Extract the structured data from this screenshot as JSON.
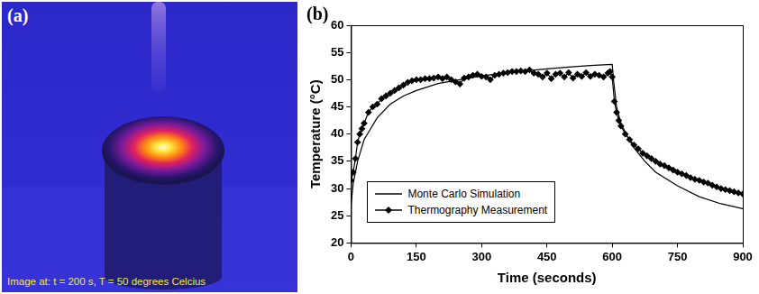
{
  "image_panel": {
    "label": "(a)",
    "caption": "Image at: t = 200 s, T = 50 degrees Celcius"
  },
  "chart_data": {
    "label": "(b)",
    "type": "line",
    "x_label": "Time (seconds)",
    "y_label": "Temperature (°C)",
    "xlim": [
      0,
      900
    ],
    "xticks": [
      0,
      150,
      300,
      450,
      600,
      750,
      900
    ],
    "ylim": [
      20,
      60
    ],
    "yticks": [
      20,
      25,
      30,
      35,
      40,
      45,
      50,
      55,
      60
    ],
    "grid": false,
    "legend": "lower left",
    "series": [
      {
        "name": "Monte Carlo Simulation",
        "color": "#000000",
        "line_style": "solid",
        "marker": "none",
        "x": [
          0,
          5,
          15,
          30,
          60,
          90,
          120,
          150,
          200,
          250,
          300,
          350,
          400,
          450,
          500,
          550,
          600,
          603,
          610,
          620,
          635,
          650,
          675,
          700,
          750,
          800,
          850,
          900
        ],
        "values": [
          27,
          31,
          35,
          39,
          43,
          45.5,
          47,
          48,
          49.3,
          50,
          50.7,
          51.2,
          51.6,
          52,
          52.3,
          52.6,
          52.8,
          50,
          45,
          42,
          39.5,
          37.5,
          35,
          33,
          30.5,
          28.5,
          27.2,
          26.3
        ]
      },
      {
        "name": "Thermography Measurement",
        "color": "#000000",
        "line_style": "solid",
        "marker": "diamond",
        "x": [
          0,
          5,
          10,
          15,
          20,
          25,
          30,
          40,
          50,
          60,
          70,
          80,
          90,
          100,
          110,
          120,
          130,
          140,
          150,
          160,
          170,
          180,
          190,
          200,
          210,
          220,
          230,
          240,
          250,
          260,
          270,
          280,
          290,
          300,
          310,
          320,
          330,
          340,
          350,
          360,
          370,
          380,
          390,
          400,
          410,
          420,
          430,
          440,
          450,
          460,
          470,
          480,
          490,
          500,
          510,
          520,
          530,
          540,
          550,
          560,
          570,
          580,
          590,
          595,
          600,
          605,
          610,
          615,
          620,
          630,
          640,
          650,
          660,
          670,
          680,
          690,
          700,
          710,
          720,
          730,
          740,
          750,
          760,
          770,
          780,
          790,
          800,
          810,
          820,
          830,
          840,
          850,
          860,
          870,
          880,
          890,
          900
        ],
        "values": [
          31.5,
          33,
          35.5,
          38.5,
          40,
          41,
          42,
          44,
          45,
          45.5,
          46.5,
          47,
          47.5,
          48,
          48.5,
          49,
          49.5,
          49.8,
          50,
          50,
          50.2,
          50.2,
          50.3,
          50.5,
          50.2,
          50.5,
          50,
          49.6,
          49.2,
          50.3,
          50.5,
          50.8,
          51,
          50.6,
          50.5,
          50,
          50.8,
          51,
          51.2,
          51.3,
          51.5,
          51.5,
          51.6,
          51.5,
          51.8,
          51.2,
          51,
          50.5,
          51.2,
          50.2,
          51,
          51.2,
          50.5,
          51.3,
          50.3,
          51,
          50.6,
          51.3,
          50.6,
          51,
          50.8,
          50.5,
          51.2,
          51.5,
          50.5,
          46,
          44,
          42.5,
          41.5,
          40,
          39,
          38,
          37.3,
          36.5,
          36,
          35.5,
          35,
          34.5,
          34.2,
          33.8,
          33.4,
          33,
          32.7,
          32.4,
          32,
          31.7,
          31.5,
          31.2,
          31,
          30.6,
          30.3,
          30,
          29.8,
          29.6,
          29.4,
          29.2,
          29
        ]
      }
    ]
  }
}
